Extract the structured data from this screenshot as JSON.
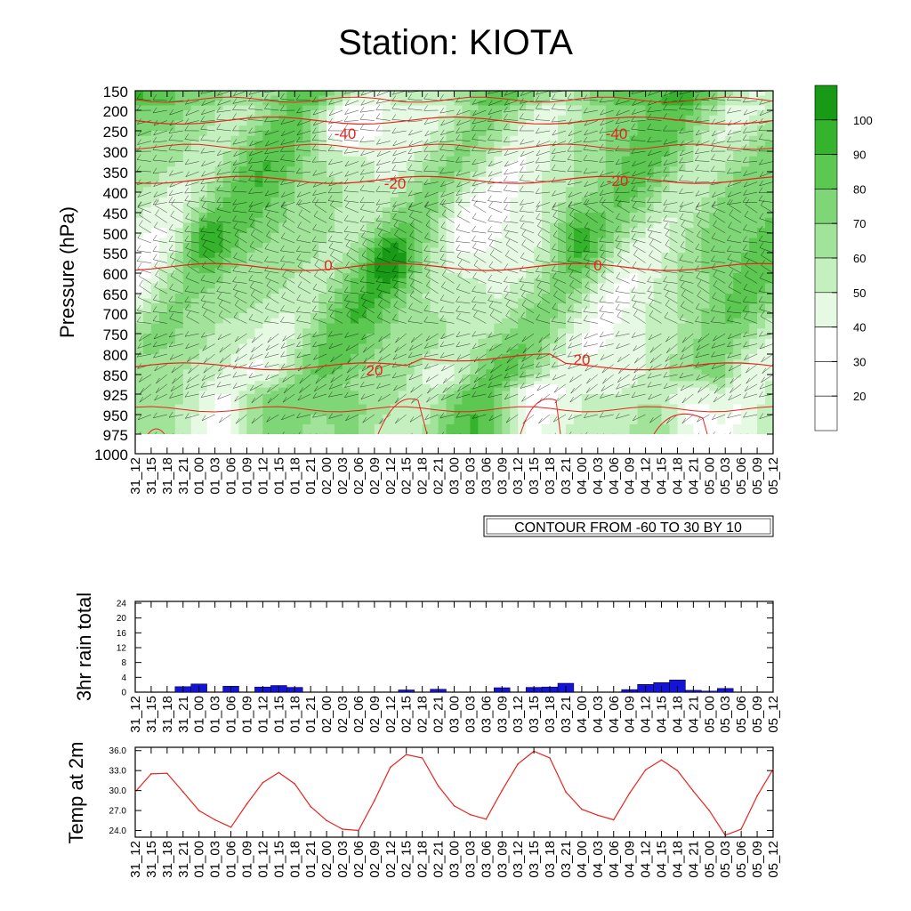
{
  "title": "Station: KIOTA",
  "contour_label": "CONTOUR FROM -60 TO 30 BY 10",
  "colors": {
    "rh_levels": [
      "#ffffff",
      "#ffffff",
      "#ffffff",
      "#e6f9e3",
      "#c4efbe",
      "#a2e39a",
      "#7fd676",
      "#5cc852",
      "#36b32d",
      "#189a16"
    ],
    "temp_line": "#e8231d",
    "rain_bar": "#1414d9",
    "axis": "#000000"
  },
  "chart_data": [
    {
      "type": "heatmap",
      "name": "cross-section",
      "ylabel": "Pressure (hPa)",
      "x_ticks": [
        "31_12",
        "31_15",
        "31_18",
        "31_21",
        "01_00",
        "01_03",
        "01_06",
        "01_09",
        "01_12",
        "01_15",
        "01_18",
        "01_21",
        "02_00",
        "02_03",
        "02_06",
        "02_09",
        "02_12",
        "02_15",
        "02_18",
        "02_21",
        "03_00",
        "03_03",
        "03_06",
        "03_09",
        "03_12",
        "03_15",
        "03_18",
        "03_21",
        "04_00",
        "04_03",
        "04_06",
        "04_09",
        "04_12",
        "04_15",
        "04_18",
        "04_21",
        "05_00",
        "05_03",
        "05_06",
        "05_09",
        "05_12"
      ],
      "y_ticks": [
        "150",
        "200",
        "250",
        "300",
        "350",
        "400",
        "450",
        "500",
        "550",
        "600",
        "650",
        "700",
        "750",
        "800",
        "850",
        "925",
        "950",
        "975",
        "1000"
      ],
      "colorbar_labels": [
        "100",
        "90",
        "80",
        "70",
        "60",
        "50",
        "40",
        "30",
        "20"
      ],
      "temperature_contours": [
        {
          "level": -40,
          "pressure": 225
        },
        {
          "level": -20,
          "pressure": 370
        },
        {
          "level": 0,
          "pressure": 585
        },
        {
          "level": 20,
          "pressure": 830
        }
      ],
      "contour_labels": [
        "-40",
        "-40",
        "-20",
        "-20",
        "0",
        "0",
        "20",
        "20"
      ]
    },
    {
      "type": "bar",
      "name": "rain",
      "ylabel": "3hr rain total",
      "ylim": [
        0,
        24
      ],
      "y_ticks": [
        "24",
        "20",
        "16",
        "12",
        "8",
        "4",
        "0"
      ],
      "categories": [
        "31_12",
        "31_15",
        "31_18",
        "31_21",
        "01_00",
        "01_03",
        "01_06",
        "01_09",
        "01_12",
        "01_15",
        "01_18",
        "01_21",
        "02_00",
        "02_03",
        "02_06",
        "02_09",
        "02_12",
        "02_15",
        "02_18",
        "02_21",
        "03_00",
        "03_03",
        "03_06",
        "03_09",
        "03_12",
        "03_15",
        "03_18",
        "03_21",
        "04_00",
        "04_03",
        "04_06",
        "04_09",
        "04_12",
        "04_15",
        "04_18",
        "04_21",
        "05_00",
        "05_03",
        "05_06",
        "05_09",
        "05_12"
      ],
      "values": [
        0,
        0,
        0,
        1.5,
        2.2,
        0,
        1.6,
        0,
        1.4,
        1.8,
        1.3,
        0,
        0,
        0,
        0,
        0,
        0,
        0.6,
        0,
        0.8,
        0,
        0,
        0,
        1.2,
        0,
        1.3,
        1.4,
        2.4,
        0,
        0,
        0,
        0.7,
        2.1,
        2.6,
        3.3,
        0.5,
        0.3,
        1.0,
        0,
        0,
        0
      ]
    },
    {
      "type": "line",
      "name": "temp",
      "ylabel": "Temp at 2m",
      "ylim": [
        23,
        36.5
      ],
      "y_ticks": [
        "36.0",
        "33.0",
        "30.0",
        "27.0",
        "24.0"
      ],
      "x": [
        "31_12",
        "31_15",
        "31_18",
        "31_21",
        "01_00",
        "01_03",
        "01_06",
        "01_09",
        "01_12",
        "01_15",
        "01_18",
        "01_21",
        "02_00",
        "02_03",
        "02_06",
        "02_09",
        "02_12",
        "02_15",
        "02_18",
        "02_21",
        "03_00",
        "03_03",
        "03_06",
        "03_09",
        "03_12",
        "03_15",
        "03_18",
        "03_21",
        "04_00",
        "04_03",
        "04_06",
        "04_09",
        "04_12",
        "04_15",
        "04_18",
        "04_21",
        "05_00",
        "05_03",
        "05_06",
        "05_09",
        "05_12"
      ],
      "values": [
        29.8,
        32.5,
        32.6,
        29.8,
        27.0,
        25.6,
        24.5,
        28.0,
        31.2,
        32.7,
        31.0,
        27.6,
        25.5,
        24.2,
        24.0,
        28.5,
        33.5,
        35.4,
        34.9,
        30.7,
        27.7,
        26.4,
        25.7,
        30.0,
        34.0,
        35.9,
        34.9,
        29.8,
        27.2,
        26.3,
        25.6,
        29.6,
        33.1,
        34.6,
        33.0,
        29.9,
        27.0,
        23.3,
        24.2,
        29.2,
        33.2
      ]
    }
  ]
}
